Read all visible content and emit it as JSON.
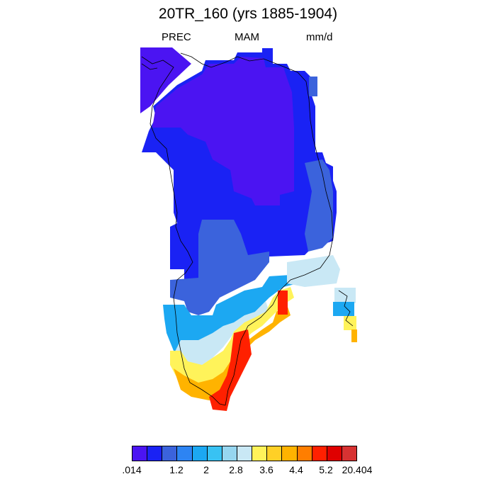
{
  "title": "20TR_160 (yrs 1885-1904)",
  "subtitle": {
    "left": "PREC",
    "center": "MAM",
    "right": "mm/d"
  },
  "colorbar": {
    "colors": [
      "#4b14f2",
      "#1a22f4",
      "#3b63dc",
      "#2d84f3",
      "#1ca8f2",
      "#38c2f3",
      "#96d6f0",
      "#c9e8f5",
      "#fff35a",
      "#ffd026",
      "#ffb300",
      "#ff7e00",
      "#ff2000",
      "#df0000",
      "#d73232"
    ],
    "labels": [
      ".014",
      "1.2",
      "2",
      "2.8",
      "3.6",
      "4.4",
      "5.2",
      "20.404"
    ]
  },
  "map_colors": {
    "violet": "#4b14f2",
    "blue": "#1a22f4",
    "steel": "#3b63dc",
    "cyan": "#1ca8f2",
    "light": "#c9e8f5",
    "yellow": "#fff35a",
    "orange": "#ffb300",
    "red": "#ff2000"
  }
}
